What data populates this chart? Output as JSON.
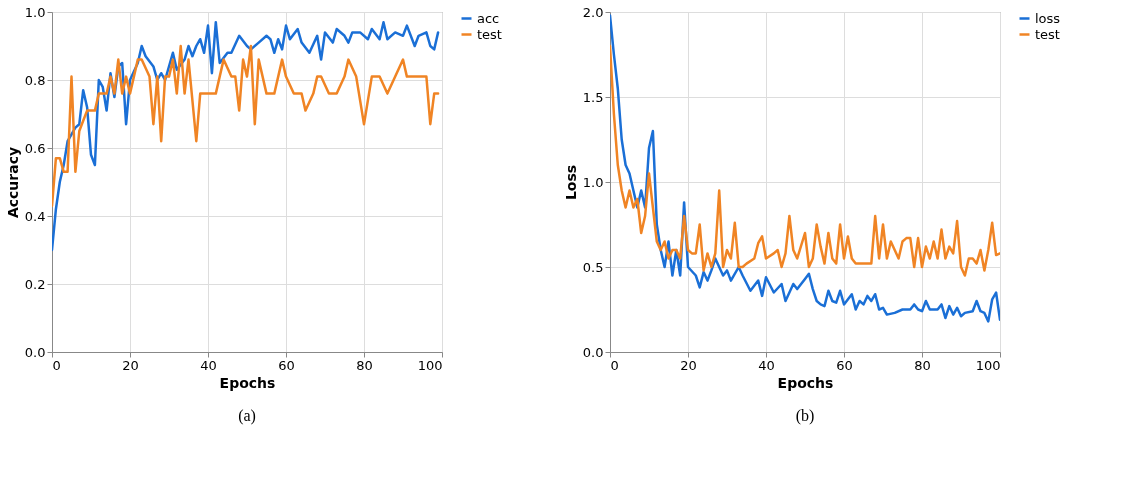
{
  "chart_data": [
    {
      "type": "line",
      "xlabel": "Epochs",
      "ylabel": "Accuracy",
      "xlim": [
        0,
        100
      ],
      "ylim": [
        0,
        1
      ],
      "xticks": [
        0,
        20,
        40,
        60,
        80,
        100
      ],
      "yticks": [
        {
          "value": 0,
          "label": "0.0"
        },
        0.2,
        0.4,
        0.6,
        0.8,
        {
          "value": 1,
          "label": "1.0"
        }
      ],
      "grid": true,
      "legend": "top right",
      "line_style": "solid",
      "annotations": [
        "(a)"
      ],
      "series": [
        {
          "name": "acc",
          "color": "#1a6fd6",
          "x": [
            0,
            1,
            2,
            3,
            4,
            5,
            6,
            7,
            8,
            9,
            10,
            11,
            12,
            13,
            14,
            15,
            16,
            17,
            18,
            19,
            20,
            22,
            23,
            24,
            26,
            27,
            28,
            29,
            31,
            32,
            34,
            35,
            36,
            37,
            38,
            39,
            40,
            41,
            42,
            43,
            45,
            46,
            48,
            50,
            51,
            53,
            55,
            56,
            57,
            58,
            59,
            60,
            61,
            63,
            64,
            66,
            68,
            69,
            70,
            72,
            73,
            75,
            76,
            77,
            79,
            81,
            82,
            84,
            85,
            86,
            88,
            90,
            91,
            93,
            94,
            96,
            97,
            98,
            99
          ],
          "values": [
            0.3,
            0.42,
            0.5,
            0.55,
            0.62,
            0.64,
            0.66,
            0.67,
            0.77,
            0.72,
            0.58,
            0.55,
            0.8,
            0.78,
            0.71,
            0.82,
            0.75,
            0.84,
            0.85,
            0.67,
            0.8,
            0.85,
            0.9,
            0.87,
            0.84,
            0.8,
            0.82,
            0.8,
            0.88,
            0.83,
            0.86,
            0.9,
            0.87,
            0.9,
            0.92,
            0.88,
            0.96,
            0.82,
            0.97,
            0.85,
            0.88,
            0.88,
            0.93,
            0.9,
            0.89,
            0.91,
            0.93,
            0.92,
            0.88,
            0.92,
            0.89,
            0.96,
            0.92,
            0.95,
            0.91,
            0.88,
            0.93,
            0.86,
            0.94,
            0.91,
            0.95,
            0.93,
            0.91,
            0.94,
            0.94,
            0.92,
            0.95,
            0.92,
            0.97,
            0.92,
            0.94,
            0.93,
            0.96,
            0.9,
            0.93,
            0.94,
            0.9,
            0.89,
            0.94
          ]
        },
        {
          "name": "test",
          "color": "#f08424",
          "x": [
            0,
            1,
            2,
            3,
            4,
            5,
            6,
            7,
            8,
            9,
            10,
            11,
            12,
            13,
            14,
            15,
            16,
            17,
            18,
            19,
            20,
            21,
            22,
            23,
            25,
            26,
            27,
            28,
            29,
            30,
            31,
            32,
            33,
            34,
            35,
            37,
            38,
            40,
            42,
            44,
            46,
            47,
            48,
            49,
            50,
            51,
            52,
            53,
            55,
            57,
            59,
            60,
            62,
            64,
            65,
            67,
            68,
            69,
            71,
            73,
            75,
            76,
            78,
            80,
            82,
            84,
            86,
            88,
            90,
            91,
            93,
            95,
            96,
            97,
            98,
            99
          ],
          "values": [
            0.43,
            0.57,
            0.57,
            0.53,
            0.53,
            0.81,
            0.53,
            0.65,
            0.68,
            0.71,
            0.71,
            0.71,
            0.76,
            0.76,
            0.76,
            0.81,
            0.76,
            0.86,
            0.76,
            0.81,
            0.76,
            0.81,
            0.86,
            0.86,
            0.81,
            0.67,
            0.81,
            0.62,
            0.81,
            0.81,
            0.86,
            0.76,
            0.9,
            0.76,
            0.86,
            0.62,
            0.76,
            0.76,
            0.76,
            0.86,
            0.81,
            0.81,
            0.71,
            0.86,
            0.81,
            0.9,
            0.67,
            0.86,
            0.76,
            0.76,
            0.86,
            0.81,
            0.76,
            0.76,
            0.71,
            0.76,
            0.81,
            0.81,
            0.76,
            0.76,
            0.81,
            0.86,
            0.81,
            0.67,
            0.81,
            0.81,
            0.76,
            0.81,
            0.86,
            0.81,
            0.81,
            0.81,
            0.81,
            0.67,
            0.76,
            0.76
          ]
        }
      ]
    },
    {
      "type": "line",
      "xlabel": "Epochs",
      "ylabel": "Loss",
      "xlim": [
        0,
        100
      ],
      "ylim": [
        0,
        2
      ],
      "xticks": [
        0,
        20,
        40,
        60,
        80,
        100
      ],
      "yticks": [
        {
          "value": 0,
          "label": "0.0"
        },
        0.5,
        {
          "value": 1,
          "label": "1.0"
        },
        1.5,
        {
          "value": 2,
          "label": "2.0"
        }
      ],
      "grid": true,
      "legend": "top right",
      "line_style": "solid",
      "annotations": [
        "(b)"
      ],
      "series": [
        {
          "name": "loss",
          "color": "#1a6fd6",
          "x": [
            0,
            1,
            2,
            3,
            4,
            5,
            6,
            7,
            8,
            9,
            10,
            11,
            12,
            13,
            14,
            15,
            16,
            17,
            18,
            19,
            20,
            22,
            23,
            24,
            25,
            26,
            27,
            28,
            29,
            30,
            31,
            33,
            34,
            36,
            38,
            39,
            40,
            42,
            44,
            45,
            47,
            48,
            50,
            51,
            52,
            53,
            54,
            55,
            56,
            57,
            58,
            59,
            60,
            62,
            63,
            64,
            65,
            66,
            67,
            68,
            69,
            70,
            71,
            73,
            75,
            77,
            78,
            79,
            80,
            81,
            82,
            84,
            85,
            86,
            87,
            88,
            89,
            90,
            91,
            93,
            94,
            95,
            96,
            97,
            98,
            99,
            100
          ],
          "values": [
            1.98,
            1.75,
            1.55,
            1.25,
            1.1,
            1.05,
            0.95,
            0.85,
            0.95,
            0.85,
            1.2,
            1.3,
            0.75,
            0.6,
            0.5,
            0.65,
            0.45,
            0.6,
            0.45,
            0.88,
            0.5,
            0.45,
            0.38,
            0.47,
            0.42,
            0.48,
            0.55,
            0.5,
            0.45,
            0.48,
            0.42,
            0.5,
            0.45,
            0.36,
            0.42,
            0.33,
            0.44,
            0.35,
            0.4,
            0.3,
            0.4,
            0.37,
            0.43,
            0.46,
            0.37,
            0.3,
            0.28,
            0.27,
            0.36,
            0.3,
            0.29,
            0.36,
            0.28,
            0.34,
            0.25,
            0.3,
            0.28,
            0.33,
            0.3,
            0.34,
            0.25,
            0.26,
            0.22,
            0.23,
            0.25,
            0.25,
            0.28,
            0.25,
            0.24,
            0.3,
            0.25,
            0.25,
            0.28,
            0.2,
            0.27,
            0.22,
            0.26,
            0.21,
            0.23,
            0.24,
            0.3,
            0.24,
            0.23,
            0.18,
            0.31,
            0.35,
            0.19
          ]
        },
        {
          "name": "test",
          "color": "#f08424",
          "x": [
            0,
            1,
            2,
            3,
            4,
            5,
            6,
            7,
            8,
            9,
            10,
            11,
            12,
            13,
            14,
            15,
            16,
            17,
            18,
            19,
            20,
            21,
            22,
            23,
            24,
            25,
            26,
            27,
            28,
            29,
            30,
            31,
            32,
            33,
            34,
            35,
            37,
            38,
            39,
            40,
            42,
            43,
            44,
            45,
            46,
            47,
            48,
            50,
            51,
            52,
            53,
            54,
            55,
            56,
            57,
            58,
            59,
            60,
            61,
            62,
            63,
            65,
            67,
            68,
            69,
            70,
            71,
            72,
            73,
            74,
            75,
            76,
            77,
            78,
            79,
            80,
            81,
            82,
            83,
            84,
            85,
            86,
            87,
            88,
            89,
            90,
            91,
            92,
            93,
            94,
            95,
            96,
            97,
            98,
            99,
            100
          ],
          "values": [
            1.8,
            1.4,
            1.1,
            0.95,
            0.85,
            0.95,
            0.85,
            0.9,
            0.7,
            0.8,
            1.05,
            0.85,
            0.65,
            0.6,
            0.65,
            0.55,
            0.6,
            0.6,
            0.55,
            0.8,
            0.6,
            0.58,
            0.58,
            0.75,
            0.48,
            0.58,
            0.5,
            0.58,
            0.95,
            0.5,
            0.6,
            0.55,
            0.76,
            0.5,
            0.5,
            0.52,
            0.55,
            0.64,
            0.68,
            0.55,
            0.58,
            0.6,
            0.5,
            0.58,
            0.8,
            0.6,
            0.55,
            0.7,
            0.5,
            0.55,
            0.75,
            0.62,
            0.52,
            0.7,
            0.55,
            0.52,
            0.75,
            0.55,
            0.68,
            0.55,
            0.52,
            0.52,
            0.52,
            0.8,
            0.55,
            0.75,
            0.55,
            0.65,
            0.6,
            0.55,
            0.65,
            0.67,
            0.67,
            0.5,
            0.67,
            0.5,
            0.62,
            0.55,
            0.65,
            0.55,
            0.72,
            0.55,
            0.62,
            0.58,
            0.77,
            0.5,
            0.45,
            0.55,
            0.55,
            0.52,
            0.6,
            0.48,
            0.6,
            0.76,
            0.57,
            0.58
          ]
        }
      ]
    }
  ]
}
